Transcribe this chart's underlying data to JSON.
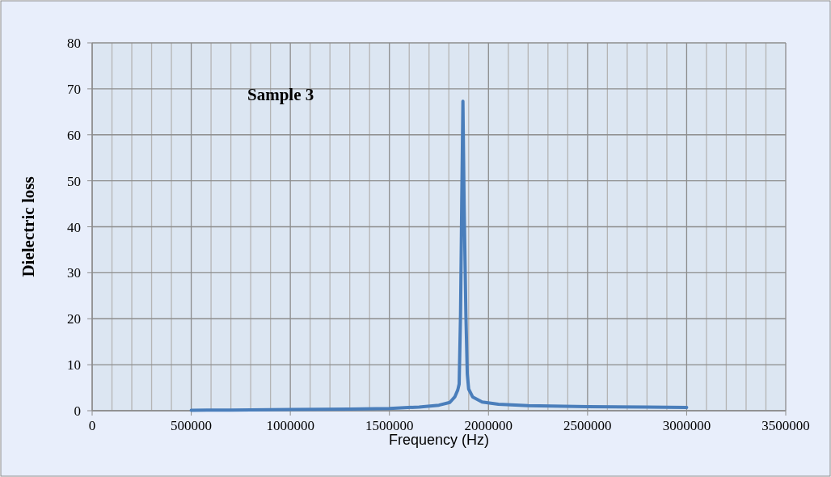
{
  "chart_data": {
    "type": "line",
    "xlabel": "Frequency (Hz)",
    "ylabel": "Dielectric loss",
    "annotations": [
      "Sample 3"
    ],
    "x": [
      500000,
      700000,
      1000000,
      1300000,
      1500000,
      1650000,
      1750000,
      1805000,
      1830000,
      1845000,
      1852000,
      1859000,
      1865000,
      1871000,
      1877000,
      1886000,
      1893000,
      1900000,
      1920000,
      1968000,
      2050000,
      2200000,
      2500000,
      2800000,
      3000000
    ],
    "series": [
      {
        "color": "#4a7ebb",
        "values": [
          0.1,
          0.15,
          0.25,
          0.35,
          0.5,
          0.8,
          1.2,
          1.8,
          3,
          4.5,
          5.8,
          21,
          45,
          67.3,
          45,
          21,
          8,
          4.7,
          3,
          1.9,
          1.4,
          1.1,
          0.9,
          0.8,
          0.7
        ]
      }
    ],
    "xlim": [
      0,
      3500000
    ],
    "ylim": [
      0,
      80
    ],
    "xticks": [
      0,
      {
        "value": 100000,
        "label": null
      },
      {
        "value": 200000,
        "label": null
      },
      {
        "value": 300000,
        "label": null
      },
      {
        "value": 400000,
        "label": null
      },
      500000,
      {
        "value": 600000,
        "label": null
      },
      {
        "value": 700000,
        "label": null
      },
      {
        "value": 800000,
        "label": null
      },
      {
        "value": 900000,
        "label": null
      },
      1000000,
      {
        "value": 1100000,
        "label": null
      },
      {
        "value": 1200000,
        "label": null
      },
      {
        "value": 1300000,
        "label": null
      },
      {
        "value": 1400000,
        "label": null
      },
      1500000,
      {
        "value": 1600000,
        "label": null
      },
      {
        "value": 1700000,
        "label": null
      },
      {
        "value": 1800000,
        "label": null
      },
      {
        "value": 1900000,
        "label": null
      },
      2000000,
      {
        "value": 2100000,
        "label": null
      },
      {
        "value": 2200000,
        "label": null
      },
      {
        "value": 2300000,
        "label": null
      },
      {
        "value": 2400000,
        "label": null
      },
      2500000,
      {
        "value": 2600000,
        "label": null
      },
      {
        "value": 2700000,
        "label": null
      },
      {
        "value": 2800000,
        "label": null
      },
      {
        "value": 2900000,
        "label": null
      },
      3000000,
      {
        "value": 3100000,
        "label": null
      },
      {
        "value": 3200000,
        "label": null
      },
      {
        "value": 3300000,
        "label": null
      },
      {
        "value": 3400000,
        "label": null
      },
      3500000
    ],
    "yticks": [
      0,
      10,
      20,
      30,
      40,
      50,
      60,
      70,
      80
    ],
    "grid": true,
    "marker": "none",
    "line_style": "solid"
  }
}
